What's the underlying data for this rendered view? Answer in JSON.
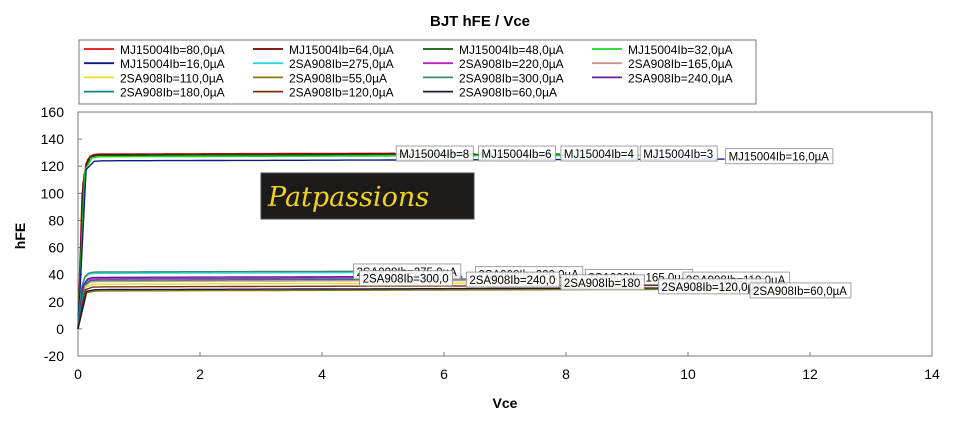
{
  "chart_data": {
    "type": "line",
    "title": "BJT hFE / Vce",
    "xlabel": "Vce",
    "ylabel": "hFE",
    "xlim": [
      0,
      14
    ],
    "ylim": [
      -20,
      160
    ],
    "xticks": [
      "0",
      "2",
      "4",
      "6",
      "8",
      "10",
      "12",
      "14"
    ],
    "yticks": [
      "160",
      "140",
      "120",
      "100",
      "80",
      "60",
      "40",
      "20",
      "0",
      "-20"
    ],
    "grid": false,
    "legend_position": "top",
    "watermark": "Patpassions",
    "series": [
      {
        "name": "MJ15004Ib=80,0µA",
        "color": "#e01010",
        "x_end": 5.2,
        "plateau": 129
      },
      {
        "name": "MJ15004Ib=64,0µA",
        "color": "#6b0000",
        "x_end": 6.5,
        "plateau": 128.5
      },
      {
        "name": "MJ15004Ib=48,0µA",
        "color": "#0a5a0a",
        "x_end": 7.9,
        "plateau": 128
      },
      {
        "name": "MJ15004Ib=32,0µA",
        "color": "#1ed41e",
        "x_end": 9.2,
        "plateau": 127
      },
      {
        "name": "MJ15004Ib=16,0µA",
        "color": "#0a1a8c",
        "x_end": 10.6,
        "plateau": 124
      },
      {
        "name": "2SA908Ib=275,0µA",
        "color": "#28d8d8",
        "x_end": 4.6,
        "plateau": 41
      },
      {
        "name": "2SA908Ib=220,0µA",
        "color": "#c020c0",
        "x_end": 6.3,
        "plateau": 37
      },
      {
        "name": "2SA908Ib=165,0µA",
        "color": "#d09090",
        "x_end": 8.4,
        "plateau": 35
      },
      {
        "name": "2SA908Ib=110,0µA",
        "color": "#e8e020",
        "x_end": 10.0,
        "plateau": 33
      },
      {
        "name": "2SA908Ib=55,0µA",
        "color": "#8a7a10",
        "x_end": 11.5,
        "plateau": 28
      },
      {
        "name": "2SA908Ib=300,0µA",
        "color": "#3a8a6a",
        "x_end": 4.6,
        "plateau": 42
      },
      {
        "name": "2SA908Ib=240,0µA",
        "color": "#6a1aa0",
        "x_end": 6.3,
        "plateau": 38
      },
      {
        "name": "2SA908Ib=180,0µA",
        "color": "#108080",
        "x_end": 8.0,
        "plateau": 36
      },
      {
        "name": "2SA908Ib=120,0µA",
        "color": "#7a3010",
        "x_end": 9.6,
        "plateau": 31
      },
      {
        "name": "2SA908Ib=60,0µA",
        "color": "#1a1a3a",
        "x_end": 11.1,
        "plateau": 29
      }
    ],
    "annotations": [
      {
        "text": "MJ15004Ib=8",
        "x": 5.2,
        "y": 129
      },
      {
        "text": "MJ15004Ib=6",
        "x": 6.55,
        "y": 129
      },
      {
        "text": "MJ15004Ib=4",
        "x": 7.9,
        "y": 129
      },
      {
        "text": "MJ15004Ib=3",
        "x": 9.2,
        "y": 129
      },
      {
        "text": "MJ15004Ib=16,0µA",
        "x": 10.6,
        "y": 127
      },
      {
        "text": "2SA908Ib=275,0µA",
        "x": 4.5,
        "y": 42
      },
      {
        "text": "2SA908Ib=220,0µA",
        "x": 6.5,
        "y": 40
      },
      {
        "text": "2SA908Ib=165,0µA",
        "x": 8.3,
        "y": 38
      },
      {
        "text": "2SA908Ib=110,0µA",
        "x": 9.9,
        "y": 36
      },
      {
        "text": "2SA908Ib=300,0",
        "x": 4.6,
        "y": 37
      },
      {
        "text": "2SA908Ib=240,0",
        "x": 6.35,
        "y": 36
      },
      {
        "text": "2SA908Ib=180",
        "x": 7.9,
        "y": 34
      },
      {
        "text": "2SA908Ib=120,0µA",
        "x": 9.5,
        "y": 31
      },
      {
        "text": "2SA908Ib=60,0µA",
        "x": 11.0,
        "y": 28
      }
    ]
  }
}
